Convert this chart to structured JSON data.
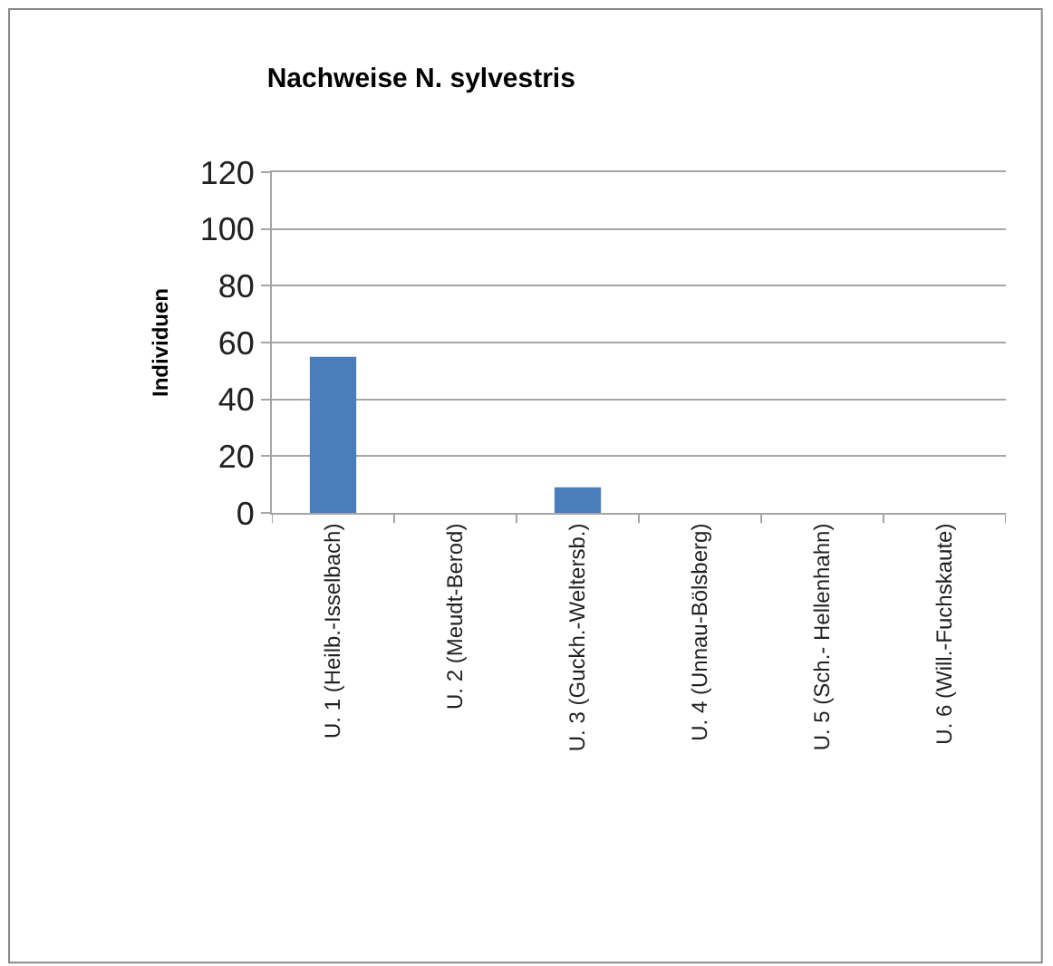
{
  "chart_data": {
    "type": "bar",
    "title": "Nachweise N. sylvestris",
    "ylabel": "Individuen",
    "categories": [
      "U. 1 (Heilb.-Isselbach)",
      "U. 2 (Meudt-Berod)",
      "U. 3 (Guckh.-Weltersb.)",
      "U. 4 (Unnau-Bölsberg)",
      "U. 5 (Sch.- Hellenhahn)",
      "U. 6 (Will.-Fuchskaute)"
    ],
    "values": [
      55,
      0,
      9,
      0,
      0,
      0
    ],
    "color": "#4a7ebb",
    "ylim": [
      0,
      120
    ],
    "yticks": [
      0,
      20,
      40,
      60,
      80,
      100,
      120
    ],
    "grid": "y"
  }
}
